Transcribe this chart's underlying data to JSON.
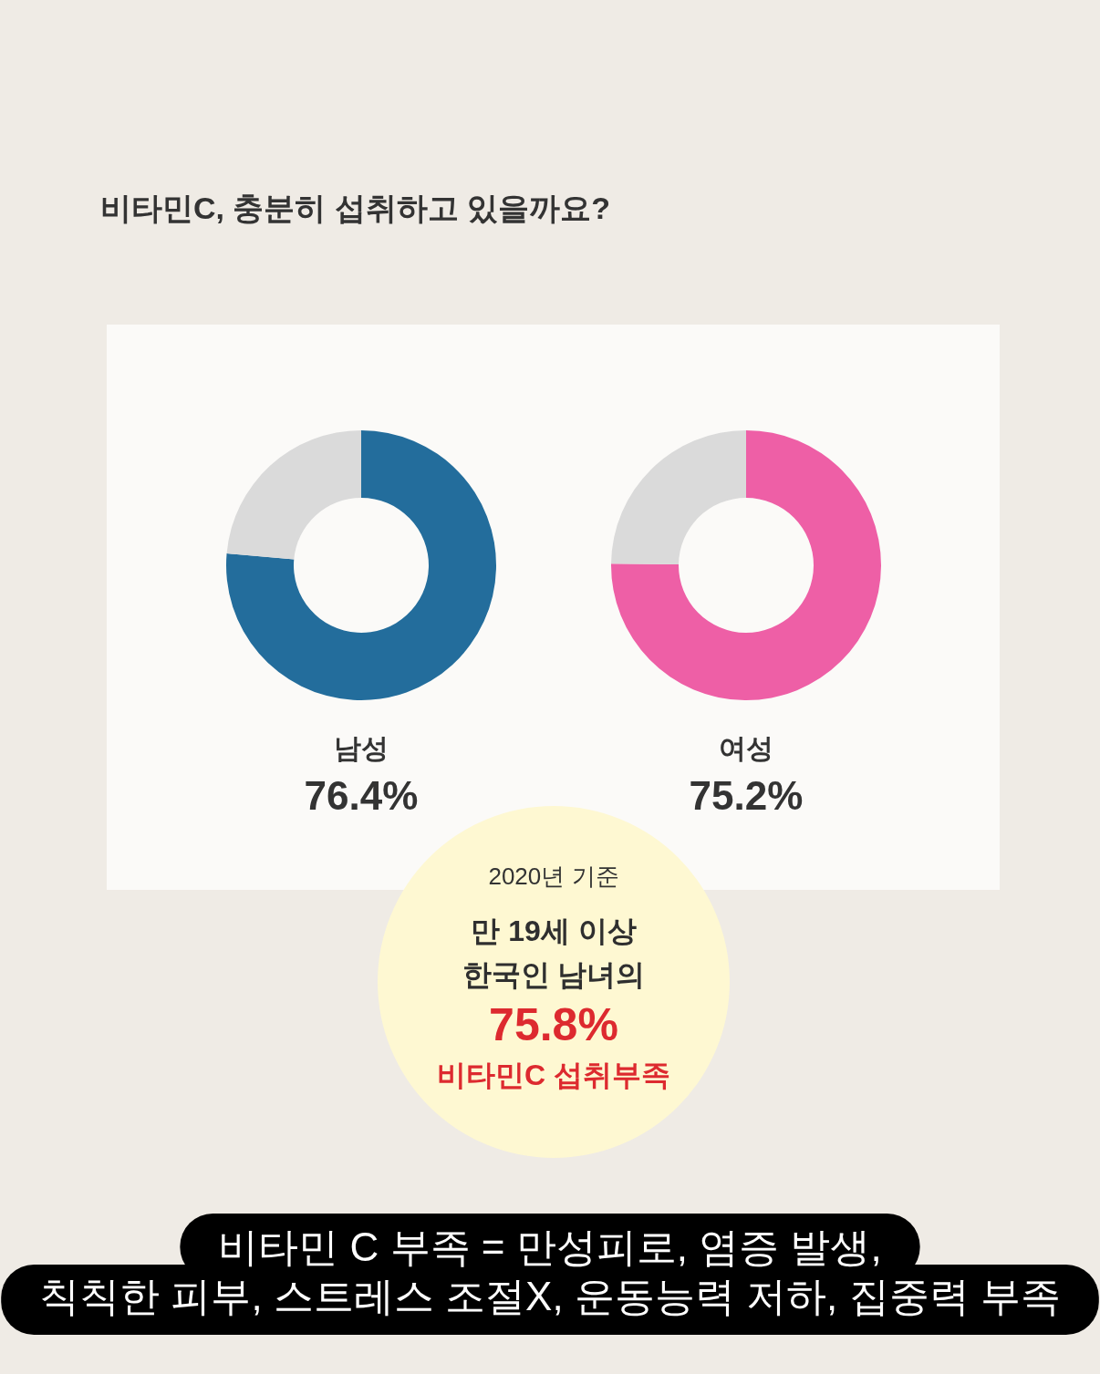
{
  "chart_data": [
    {
      "type": "other",
      "title": "비타민C, 충분히 섭취하고 있을까요?"
    },
    {
      "type": "donut",
      "title": "남성",
      "categories": [
        null,
        null
      ],
      "values": [
        76.4,
        23.6
      ],
      "colors": [
        "#236d9c",
        "#dadada"
      ],
      "value_labels": [
        "76.4%",
        null
      ]
    },
    {
      "type": "donut",
      "title": "여성",
      "categories": [
        null,
        null
      ],
      "values": [
        75.2,
        24.8
      ],
      "colors": [
        "#ee5fa6",
        "#dadada"
      ],
      "value_labels": [
        "75.2%",
        null
      ]
    },
    {
      "type": "other",
      "subtitle": "2020년 기준",
      "annotations": [
        "만 19세 이상",
        "한국인 남녀의",
        "75.8%",
        "비타민C 섭취부족"
      ]
    },
    {
      "type": "other",
      "annotations": [
        "비타민 C 부족 = 만성피로, 염증 발생,",
        "칙칙한 피부, 스트레스 조절X, 운동능력 저하, 집중력 부족"
      ]
    }
  ]
}
